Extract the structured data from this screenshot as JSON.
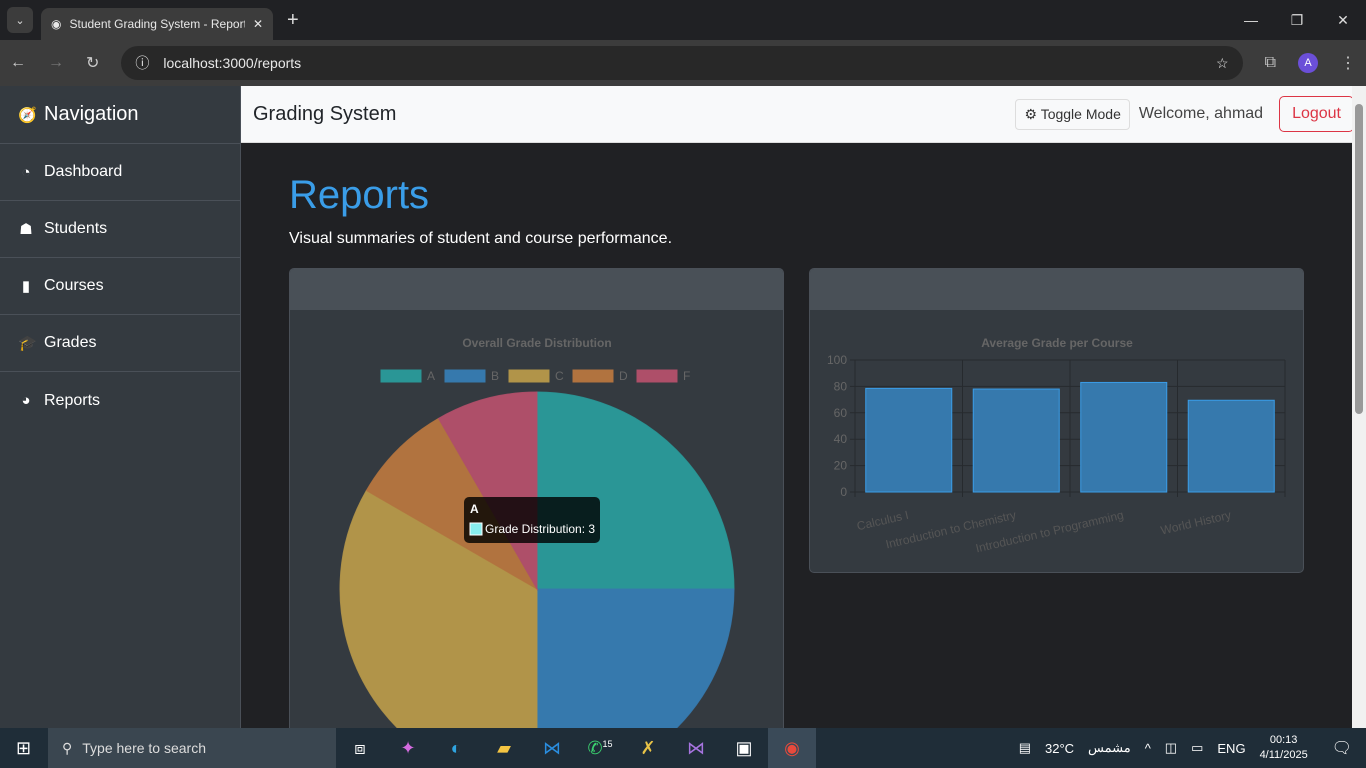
{
  "browser": {
    "tab_title": "Student Grading System - Reports",
    "url": "localhost:3000/reports",
    "profile_initial": "A"
  },
  "sidebar": {
    "title": "Navigation",
    "items": [
      {
        "label": "Dashboard",
        "icon": "gauge-icon"
      },
      {
        "label": "Students",
        "icon": "user-graduate-icon"
      },
      {
        "label": "Courses",
        "icon": "book-icon"
      },
      {
        "label": "Grades",
        "icon": "graduation-cap-icon"
      },
      {
        "label": "Reports",
        "icon": "pie-chart-icon"
      }
    ]
  },
  "topnav": {
    "brand": "Grading System",
    "toggle_label": "Toggle Mode",
    "welcome": "Welcome, ahmad",
    "logout_label": "Logout"
  },
  "page": {
    "title": "Reports",
    "subtitle": "Visual summaries of student and course performance."
  },
  "tooltip": {
    "title": "A",
    "label": "Grade Distribution: 3"
  },
  "chart_data": [
    {
      "type": "pie",
      "title": "Overall Grade Distribution",
      "categories": [
        "A",
        "B",
        "C",
        "D",
        "F"
      ],
      "values": [
        3,
        3,
        4,
        1,
        1
      ],
      "series_name": "Grade Distribution",
      "colors": [
        "#2a9696",
        "#3679ad",
        "#b19449",
        "#b1733f",
        "#ae4f69"
      ],
      "legend": "top"
    },
    {
      "type": "bar",
      "title": "Average Grade per Course",
      "categories": [
        "Calculus I",
        "Introduction to Chemistry",
        "Introduction to Programming",
        "World History"
      ],
      "values": [
        78.5,
        78,
        83,
        69.5
      ],
      "ylim": [
        0,
        100
      ],
      "yticks": [
        0,
        20,
        40,
        60,
        80,
        100
      ],
      "grid": true,
      "color": "#3679ad"
    }
  ],
  "taskbar": {
    "search_placeholder": "Type here to search",
    "weather": "32°C",
    "weather_text": "مشمس",
    "lang": "ENG",
    "time": "00:13",
    "date": "4/11/2025",
    "whatsapp_badge": "15"
  }
}
